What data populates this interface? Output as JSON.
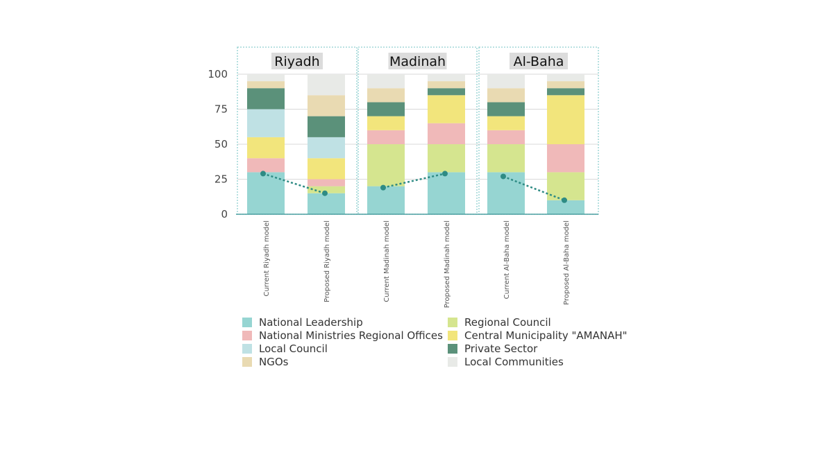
{
  "chart_data": {
    "type": "bar",
    "stacked": true,
    "categories": [
      "Current Riyadh model",
      "Proposed Riyadh model",
      "Current Madinah model",
      "Proposed Madinah model",
      "Current Al-Baha model",
      "Proposed Al-Baha model"
    ],
    "panels": [
      {
        "title": "Riyadh",
        "categories": [
          0,
          1
        ]
      },
      {
        "title": "Madinah",
        "categories": [
          2,
          3
        ]
      },
      {
        "title": "Al-Baha",
        "categories": [
          4,
          5
        ]
      }
    ],
    "ylim": [
      0,
      100
    ],
    "yticks": [
      0,
      25,
      50,
      75,
      100
    ],
    "grid": true,
    "series": [
      {
        "name": "National Leadership",
        "color": "#96d5d2",
        "values": [
          30,
          15,
          20,
          30,
          30,
          10
        ]
      },
      {
        "name": "Regional Council",
        "color": "#d5e58f",
        "values": [
          0,
          5,
          30,
          20,
          20,
          20
        ]
      },
      {
        "name": "National Ministries Regional Offices",
        "color": "#f0b9b9",
        "values": [
          10,
          5,
          10,
          15,
          10,
          20
        ]
      },
      {
        "name": "Central Municipality \"AMANAH\"",
        "color": "#f2e57c",
        "values": [
          15,
          15,
          10,
          20,
          10,
          35
        ]
      },
      {
        "name": "Local Council",
        "color": "#bfe1e4",
        "values": [
          20,
          15,
          0,
          0,
          0,
          0
        ]
      },
      {
        "name": "Private Sector",
        "color": "#5b917a",
        "values": [
          15,
          15,
          10,
          5,
          10,
          5
        ]
      },
      {
        "name": "NGOs",
        "color": "#e9dab2",
        "values": [
          5,
          15,
          10,
          5,
          10,
          5
        ]
      },
      {
        "name": "Local Communities",
        "color": "#e8eae7",
        "values": [
          5,
          15,
          10,
          5,
          10,
          5
        ]
      }
    ],
    "legend": {
      "placement": "bottom",
      "columns": [
        [
          "National Leadership",
          "National Ministries Regional Offices",
          "Local Council",
          "NGOs"
        ],
        [
          "Regional Council",
          "Central Municipality \"AMANAH\"",
          "Private Sector",
          "Local Communities"
        ]
      ]
    },
    "trend_lines": [
      {
        "panel": "Riyadh",
        "from": 29,
        "to": 15,
        "color": "#2e8b84"
      },
      {
        "panel": "Madinah",
        "from": 19,
        "to": 29,
        "color": "#2e8b84"
      },
      {
        "panel": "Al-Baha",
        "from": 27,
        "to": 10,
        "color": "#2e8b84"
      }
    ],
    "panel_border_color": "#8fcfd0",
    "title_bg_color": "#dcdcdc"
  }
}
